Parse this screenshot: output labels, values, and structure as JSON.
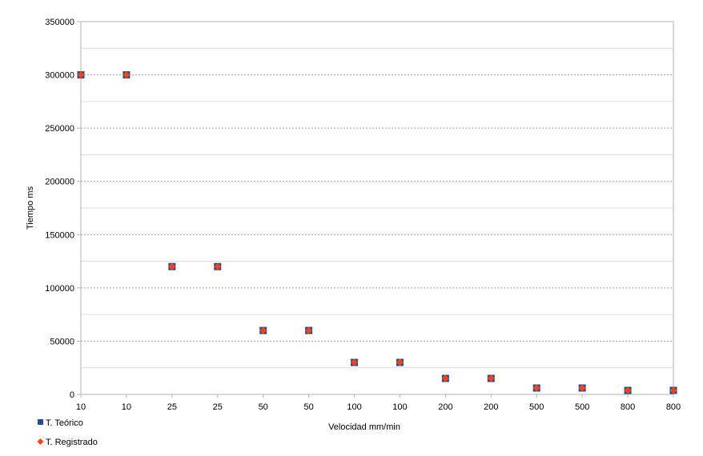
{
  "chart_data": {
    "type": "scatter",
    "xlabel": "Velocidad mm/min",
    "ylabel": "Tiempo ms",
    "categories": [
      "10",
      "10",
      "25",
      "25",
      "50",
      "50",
      "100",
      "100",
      "200",
      "200",
      "500",
      "500",
      "800",
      "800"
    ],
    "yticks": [
      "0",
      "50000",
      "100000",
      "150000",
      "200000",
      "250000",
      "300000",
      "350000"
    ],
    "ylim": [
      0,
      350000
    ],
    "grid": "horizontal dotted",
    "legend_position": "bottom-left",
    "series": [
      {
        "name": "T. Teórico",
        "marker": "square",
        "color": "#1f4e9c",
        "values": [
          300000,
          300000,
          120000,
          120000,
          60000,
          60000,
          30000,
          30000,
          15000,
          15000,
          6000,
          6000,
          3750,
          3750
        ]
      },
      {
        "name": "T. Registrado",
        "marker": "diamond",
        "color": "#ff420e",
        "values": [
          300000,
          300000,
          120000,
          120000,
          60000,
          60000,
          30000,
          30000,
          15000,
          15000,
          6000,
          6000,
          3750,
          3750
        ]
      }
    ]
  }
}
